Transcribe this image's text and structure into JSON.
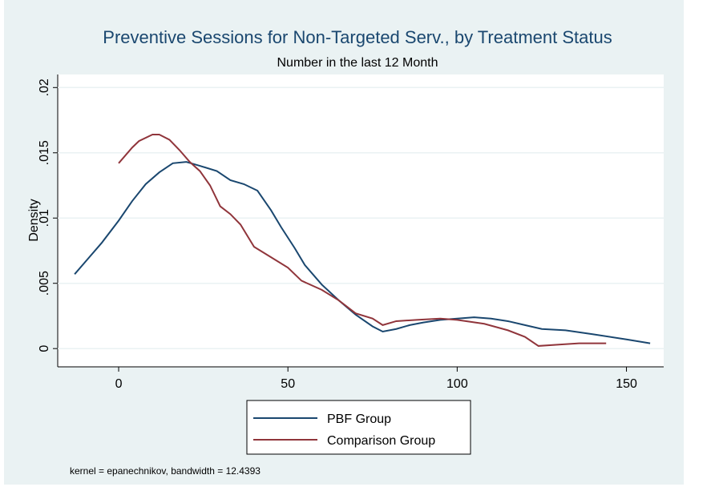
{
  "chart_data": {
    "type": "line",
    "title": "Preventive Sessions for Non-Targeted Serv., by Treatment Status",
    "subtitle": "Number in the last 12 Month",
    "y_label": "Density",
    "note": "kernel = epanechnikov, bandwidth = 12.4393",
    "xlim": [
      -18,
      161
    ],
    "ylim": [
      -0.0014,
      0.021
    ],
    "xticks": [
      0,
      50,
      100,
      150
    ],
    "yticks": [
      0,
      {
        "value": 0.005,
        "label": ".005"
      },
      {
        "value": 0.01,
        "label": ".01"
      },
      {
        "value": 0.015,
        "label": ".015"
      },
      {
        "value": 0.02,
        "label": ".02"
      }
    ],
    "grid": true,
    "legend": "bottom",
    "series": [
      {
        "name": "PBF Group",
        "color": "#1a476f",
        "x": [
          -13,
          -9,
          -5,
          0,
          4,
          8,
          12,
          16,
          20,
          24,
          29,
          33,
          37,
          41,
          45,
          48,
          52,
          55,
          60,
          65,
          70,
          75,
          78,
          82,
          86,
          90,
          95,
          100,
          105,
          110,
          115,
          120,
          125,
          132,
          140,
          150,
          157
        ],
        "values": [
          0.0057,
          0.0069,
          0.0081,
          0.0098,
          0.0113,
          0.0126,
          0.0135,
          0.0142,
          0.0143,
          0.014,
          0.0136,
          0.0129,
          0.0126,
          0.0121,
          0.0106,
          0.0093,
          0.0077,
          0.0064,
          0.0049,
          0.0037,
          0.0026,
          0.0017,
          0.0013,
          0.0015,
          0.0018,
          0.002,
          0.0022,
          0.0023,
          0.0024,
          0.0023,
          0.0021,
          0.0018,
          0.0015,
          0.0014,
          0.0011,
          0.0007,
          0.0004
        ]
      },
      {
        "name": "Comparison Group",
        "color": "#90353b",
        "x": [
          0,
          4,
          6,
          10,
          12,
          15,
          18,
          21,
          24,
          27,
          30,
          33,
          36,
          40,
          45,
          50,
          54,
          60,
          65,
          70,
          75,
          78,
          82,
          88,
          95,
          100,
          108,
          115,
          120,
          124,
          130,
          136,
          144
        ],
        "values": [
          0.0142,
          0.0154,
          0.0159,
          0.0164,
          0.0164,
          0.016,
          0.0152,
          0.0143,
          0.0136,
          0.0125,
          0.0109,
          0.0103,
          0.0095,
          0.0078,
          0.007,
          0.0062,
          0.0052,
          0.0045,
          0.0037,
          0.0027,
          0.0023,
          0.0018,
          0.0021,
          0.0022,
          0.0023,
          0.0022,
          0.0019,
          0.0014,
          0.0009,
          0.0002,
          0.0003,
          0.0004,
          0.0004
        ]
      }
    ]
  }
}
